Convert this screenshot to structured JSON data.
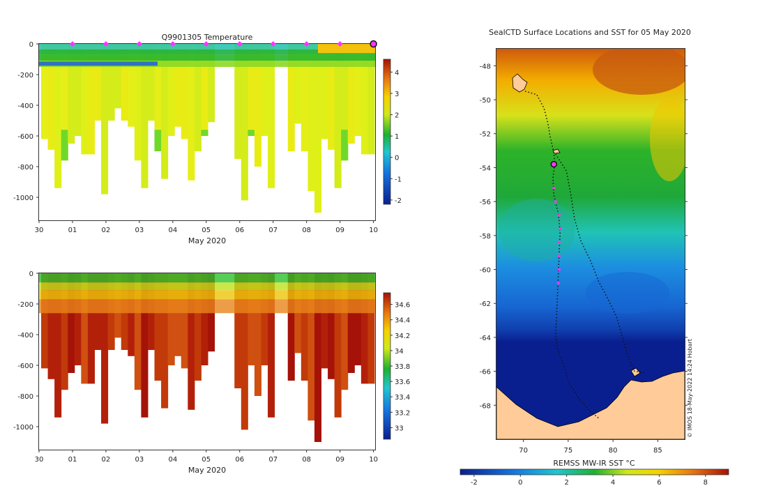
{
  "chart_data": [
    {
      "type": "heatmap",
      "title": "Q9901305  Temperature",
      "xlabel": "May 2020",
      "ylabel": "",
      "xtick_labels": [
        "30",
        "01",
        "02",
        "03",
        "04",
        "05",
        "06",
        "07",
        "08",
        "09",
        "10"
      ],
      "xlim": [
        0,
        10.05
      ],
      "ylim": [
        -1150,
        0
      ],
      "ytick_values": [
        0,
        -200,
        -400,
        -600,
        -800,
        -1000
      ],
      "ytick_labels": [
        "0",
        "-200",
        "-400",
        "-600",
        "-800",
        "-1000"
      ],
      "colorbar": {
        "min": -2.2,
        "max": 4.6,
        "tick_values": [
          4,
          3,
          2,
          1,
          0,
          -1,
          -2
        ],
        "tick_labels": [
          "4",
          "3",
          "2",
          "1",
          "0",
          "-1",
          "-2"
        ]
      },
      "profile_markers_day": [
        1,
        2,
        3,
        4,
        5,
        6,
        7,
        8,
        9
      ],
      "current_marker_day": 10
    },
    {
      "type": "heatmap",
      "title": "",
      "xlabel": "May 2020",
      "ylabel": "",
      "xtick_labels": [
        "30",
        "01",
        "02",
        "03",
        "04",
        "05",
        "06",
        "07",
        "08",
        "09",
        "10"
      ],
      "xlim": [
        0,
        10.05
      ],
      "ylim": [
        -1150,
        0
      ],
      "ytick_values": [
        0,
        -200,
        -400,
        -600,
        -800,
        -1000
      ],
      "ytick_labels": [
        "0",
        "-200",
        "-400",
        "-600",
        "-800",
        "-1000"
      ],
      "colorbar": {
        "min": 32.85,
        "max": 34.75,
        "tick_values": [
          34.6,
          34.4,
          34.2,
          34,
          33.8,
          33.6,
          33.4,
          33.2,
          33
        ],
        "tick_labels": [
          "34.6",
          "34.4",
          "34.2",
          "34",
          "33.8",
          "33.6",
          "33.4",
          "33.2",
          "33"
        ]
      }
    },
    {
      "type": "heatmap",
      "title": "SealCTD Surface Locations and SST for 05 May 2020",
      "xlabel": "",
      "ylabel": "",
      "xlim": [
        67,
        88
      ],
      "ylim": [
        -70,
        -47
      ],
      "xtick_values": [
        70,
        75,
        80,
        85
      ],
      "xtick_labels": [
        "70",
        "75",
        "80",
        "85"
      ],
      "ytick_values": [
        -48,
        -50,
        -52,
        -54,
        -56,
        -58,
        -60,
        -62,
        -64,
        -66,
        -68
      ],
      "ytick_labels": [
        "-48",
        "-50",
        "-52",
        "-54",
        "-56",
        "-58",
        "-60",
        "-62",
        "-64",
        "-66",
        "-68"
      ],
      "colorbar": {
        "label": "REMSS MW-IR SST °C",
        "min": -2.6,
        "max": 9,
        "tick_values": [
          -2,
          0,
          2,
          4,
          6,
          8
        ],
        "tick_labels": [
          "-2",
          "0",
          "2",
          "4",
          "6",
          "8"
        ]
      },
      "track_lon_lat": [
        [
          70.2,
          -49.5
        ],
        [
          71.5,
          -49.7
        ],
        [
          72.3,
          -50.5
        ],
        [
          72.7,
          -51.3
        ],
        [
          73.0,
          -52.2
        ],
        [
          73.4,
          -53.1
        ],
        [
          73.5,
          -53.8
        ],
        [
          73.3,
          -54.6
        ],
        [
          73.4,
          -55.6
        ],
        [
          73.9,
          -56.7
        ],
        [
          74.1,
          -57.8
        ],
        [
          74.0,
          -59.0
        ],
        [
          73.9,
          -60.3
        ],
        [
          73.8,
          -61.6
        ],
        [
          73.7,
          -62.8
        ],
        [
          73.6,
          -63.8
        ],
        [
          73.8,
          -64.7
        ],
        [
          74.6,
          -65.8
        ],
        [
          75.0,
          -66.6
        ],
        [
          76.2,
          -67.6
        ],
        [
          77.3,
          -68.3
        ],
        [
          78.5,
          -68.8
        ]
      ],
      "return_track_lon_lat": [
        [
          73.6,
          -53.2
        ],
        [
          74.8,
          -54.2
        ],
        [
          75.3,
          -55.6
        ],
        [
          75.7,
          -57.0
        ],
        [
          76.4,
          -58.3
        ],
        [
          77.5,
          -59.5
        ],
        [
          78.4,
          -60.7
        ],
        [
          79.4,
          -61.7
        ],
        [
          80.4,
          -62.8
        ],
        [
          81.0,
          -63.9
        ],
        [
          81.6,
          -65.0
        ],
        [
          82.4,
          -66.0
        ],
        [
          83.6,
          -66.1
        ]
      ],
      "profile_points_lon_lat": [
        [
          73.4,
          -55.2
        ],
        [
          73.6,
          -56.0
        ],
        [
          74.0,
          -56.8
        ],
        [
          74.1,
          -57.6
        ],
        [
          74.0,
          -58.4
        ],
        [
          74.0,
          -59.2
        ],
        [
          74.0,
          -60.0
        ],
        [
          73.9,
          -60.8
        ]
      ],
      "current_point_lon_lat": [
        73.4,
        -53.8
      ]
    }
  ],
  "credit": "© IMOS 18-May-2022 14:24 Hobart"
}
